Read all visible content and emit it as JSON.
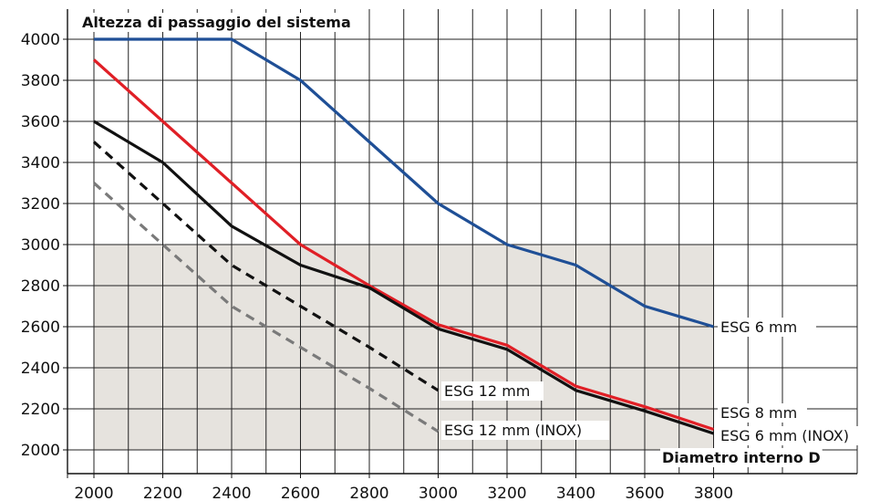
{
  "chart_data": {
    "type": "line",
    "title": "",
    "ylabel": "Altezza di passaggio del sistema",
    "xlabel": "Diametro interno D",
    "x": [
      2000,
      2200,
      2400,
      2600,
      2800,
      3000,
      3200,
      3400,
      3600,
      3800
    ],
    "xlim": [
      2000,
      3800
    ],
    "ylim": [
      2000,
      4000
    ],
    "x_ticks": [
      "2000",
      "2200",
      "2400",
      "2600",
      "2800",
      "3000",
      "3200",
      "3400",
      "3600",
      "3800"
    ],
    "y_ticks": [
      "4000",
      "3800",
      "3600",
      "3400",
      "3200",
      "3000",
      "2800",
      "2600",
      "2400",
      "2200",
      "2000"
    ],
    "grid": true,
    "shaded_band": {
      "y_from": 2000,
      "y_to": 3000,
      "x_from": 2000,
      "x_to": 3800,
      "color": "#e6e3de"
    },
    "series": [
      {
        "name": "ESG 6 mm",
        "color": "#1f4f96",
        "dash": "solid",
        "points": [
          [
            2000,
            4000
          ],
          [
            2200,
            4000
          ],
          [
            2400,
            4000
          ],
          [
            2600,
            3800
          ],
          [
            2800,
            3500
          ],
          [
            3000,
            3200
          ],
          [
            3200,
            3000
          ],
          [
            3400,
            2900
          ],
          [
            3600,
            2700
          ],
          [
            3800,
            2600
          ]
        ]
      },
      {
        "name": "ESG 8 mm",
        "color": "#e01f26",
        "dash": "solid",
        "points": [
          [
            2000,
            3900
          ],
          [
            2200,
            3600
          ],
          [
            2400,
            3300
          ],
          [
            2600,
            3000
          ],
          [
            2800,
            2800
          ],
          [
            3000,
            2610
          ],
          [
            3200,
            2510
          ],
          [
            3400,
            2310
          ],
          [
            3600,
            2210
          ],
          [
            3800,
            2100
          ]
        ]
      },
      {
        "name": "ESG 6 mm (INOX)",
        "color": "#111111",
        "dash": "solid",
        "points": [
          [
            2000,
            3600
          ],
          [
            2200,
            3400
          ],
          [
            2400,
            3090
          ],
          [
            2600,
            2900
          ],
          [
            2800,
            2790
          ],
          [
            3000,
            2590
          ],
          [
            3200,
            2490
          ],
          [
            3400,
            2290
          ],
          [
            3600,
            2190
          ],
          [
            3800,
            2080
          ]
        ]
      },
      {
        "name": "ESG 12 mm",
        "color": "#111111",
        "dash": "dashed",
        "points": [
          [
            2000,
            3500
          ],
          [
            2200,
            3200
          ],
          [
            2400,
            2900
          ],
          [
            2600,
            2700
          ],
          [
            2800,
            2500
          ],
          [
            3000,
            2290
          ]
        ]
      },
      {
        "name": "ESG 12 mm (INOX)",
        "color": "#7a7a7a",
        "dash": "dashed",
        "points": [
          [
            2000,
            3300
          ],
          [
            2200,
            3000
          ],
          [
            2400,
            2700
          ],
          [
            2600,
            2500
          ],
          [
            2800,
            2300
          ],
          [
            3000,
            2090
          ]
        ]
      }
    ]
  }
}
